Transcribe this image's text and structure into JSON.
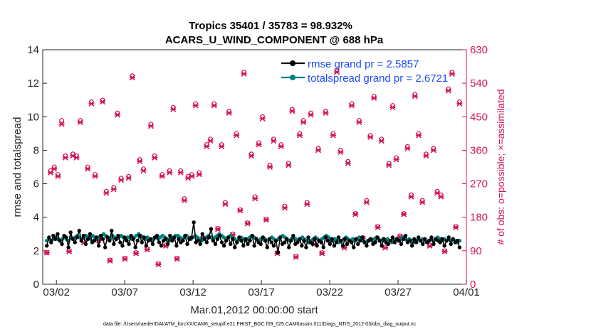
{
  "chart_data": {
    "type": "line",
    "title_line1": "Tropics 35401 / 35783 = 98.932%",
    "title_line2": "ACARS_U_WIND_COMPONENT @ 688 hPa",
    "xlabel": "Mar.01,2012 00:00:00 start",
    "ylabel_left": "rmse and totalspread",
    "ylabel_right": "# of obs: o=possible; ×=assimilated",
    "footnote": "data file: /Users/raeder/DAI/ATM_forcXX/CAM6_setup/f.e21.FHIST_BGC.f09_025.CAM6assim.011/Diags_NTrS_2012-03/obs_diag_output.nc",
    "x_range_days": [
      0,
      31
    ],
    "x_ticks": [
      {
        "day": 1,
        "label": "03/02"
      },
      {
        "day": 6,
        "label": "03/07"
      },
      {
        "day": 11,
        "label": "03/12"
      },
      {
        "day": 16,
        "label": "03/17"
      },
      {
        "day": 21,
        "label": "03/22"
      },
      {
        "day": 26,
        "label": "03/27"
      },
      {
        "day": 31,
        "label": "04/01"
      }
    ],
    "y_left": {
      "range": [
        0,
        14
      ],
      "ticks": [
        "0",
        "2",
        "4",
        "6",
        "8",
        "10",
        "12",
        "14"
      ]
    },
    "y_right": {
      "range": [
        0,
        630
      ],
      "ticks": [
        "0",
        "90",
        "180",
        "270",
        "360",
        "450",
        "540",
        "630"
      ]
    },
    "legend": {
      "rmse_label": "rmse grand pr = 2.5857",
      "spread_label": "totalspread grand pr = 2.6721"
    },
    "colors": {
      "rmse": "#000000",
      "totalspread": "#008080",
      "obs": "#d4145a",
      "axis": "#262626"
    },
    "series": [
      {
        "name": "rmse",
        "values": [
          2.3,
          2.8,
          2.5,
          2.9,
          2.7,
          3.0,
          2.6,
          2.4,
          2.9,
          2.8,
          2.2,
          3.1,
          2.7,
          2.5,
          2.8,
          3.2,
          2.6,
          2.9,
          2.4,
          2.7,
          3.0,
          2.5,
          2.6,
          2.8,
          2.3,
          2.9,
          2.7,
          2.2,
          2.8,
          2.6,
          3.2,
          2.4,
          2.7,
          2.9,
          2.5,
          2.3,
          2.8,
          2.6,
          2.4,
          2.9,
          2.7,
          2.2,
          2.6,
          2.9,
          2.5,
          2.8,
          2.3,
          2.6,
          2.7,
          2.4,
          2.8,
          2.9,
          2.5,
          2.3,
          2.6,
          2.7,
          2.4,
          2.9,
          2.6,
          2.8,
          2.3,
          2.7,
          2.5,
          2.6,
          2.9,
          2.4,
          2.7,
          2.8,
          3.7,
          2.5,
          2.6,
          2.4,
          3.0,
          2.7,
          2.5,
          2.8,
          3.3,
          2.6,
          2.4,
          2.7,
          2.9,
          2.5,
          2.3,
          2.6,
          2.8,
          2.4,
          2.7,
          2.2,
          2.5,
          2.8,
          2.6,
          2.3,
          2.7,
          2.4,
          2.6,
          2.9,
          2.3,
          2.7,
          2.5,
          2.4,
          2.8,
          2.6,
          2.2,
          2.7,
          2.5,
          2.3,
          2.6,
          1.9,
          2.8,
          2.4,
          2.5,
          2.7,
          2.2,
          2.6,
          2.9,
          2.4,
          2.5,
          2.7,
          2.3,
          2.6,
          2.2,
          2.8,
          2.5,
          2.4,
          2.7,
          2.3,
          2.6,
          2.5,
          2.2,
          2.8,
          2.6,
          2.4,
          2.7,
          2.3,
          2.5,
          2.8,
          2.6,
          2.3,
          2.7,
          2.4,
          2.6,
          2.5,
          2.2,
          2.7,
          2.4,
          2.6,
          2.8,
          2.5,
          2.3,
          2.6,
          2.7,
          2.4,
          2.5,
          2.8,
          2.6,
          2.3,
          2.7,
          2.5,
          2.4,
          2.6,
          2.8,
          2.5,
          2.7,
          2.6,
          2.4,
          2.7,
          2.9,
          2.5,
          2.6,
          2.3,
          2.7,
          2.5,
          2.8,
          2.6,
          2.4,
          2.7,
          2.5,
          2.6,
          2.8,
          2.4,
          2.7,
          2.6,
          2.5,
          2.7,
          2.3,
          2.6,
          2.8,
          2.4,
          2.7,
          2.5,
          2.6,
          2.2
        ]
      },
      {
        "name": "totalspread",
        "values": [
          2.6,
          2.7,
          2.6,
          2.7,
          2.8,
          2.7,
          2.6,
          2.7,
          2.8,
          2.7,
          2.6,
          2.8,
          2.7,
          2.8,
          2.9,
          2.8,
          2.7,
          2.8,
          2.9,
          2.8,
          2.7,
          2.9,
          2.8,
          2.7,
          2.8,
          2.9,
          3.0,
          2.9,
          2.8,
          2.7,
          2.9,
          2.8,
          2.7,
          2.8,
          2.9,
          2.8,
          2.7,
          2.8,
          2.8,
          2.7,
          2.8,
          2.9,
          3.0,
          2.9,
          2.8,
          2.7,
          2.8,
          2.7,
          2.6,
          2.7,
          2.8,
          2.7,
          2.8,
          2.9,
          2.8,
          2.7,
          2.6,
          2.7,
          2.8,
          2.9,
          2.9,
          2.8,
          2.7,
          2.8,
          2.9,
          2.8,
          2.7,
          2.8,
          2.9,
          2.8,
          2.7,
          2.6,
          2.7,
          2.8,
          2.9,
          2.8,
          2.7,
          2.8,
          2.9,
          3.0,
          2.9,
          2.8,
          2.7,
          2.8,
          2.9,
          2.8,
          2.7,
          2.6,
          2.7,
          2.8,
          2.7,
          2.6,
          2.7,
          2.8,
          2.9,
          2.8,
          2.7,
          2.6,
          2.7,
          2.8,
          2.7,
          2.6,
          2.7,
          2.8,
          2.7,
          2.6,
          2.7,
          2.8,
          2.9,
          2.8,
          2.7,
          2.6,
          2.7,
          2.8,
          2.7,
          2.6,
          2.7,
          2.8,
          2.7,
          2.6,
          2.5,
          2.6,
          2.7,
          2.8,
          2.7,
          2.6,
          2.7,
          2.8,
          2.9,
          2.8,
          2.7,
          2.6,
          2.7,
          2.6,
          2.5,
          2.6,
          2.7,
          2.8,
          2.7,
          2.6,
          2.7,
          2.6,
          2.7,
          2.8,
          2.7,
          2.6,
          2.5,
          2.6,
          2.7,
          2.6,
          2.7,
          2.8,
          2.7,
          2.6,
          2.7,
          2.6,
          2.7,
          2.6,
          2.5,
          2.6,
          2.7,
          2.6,
          2.7,
          2.8,
          2.7,
          2.6,
          2.7,
          2.6,
          2.5,
          2.6,
          2.7,
          2.6,
          2.7,
          2.6,
          2.5,
          2.6,
          2.7,
          2.6,
          2.7,
          2.8,
          2.7,
          2.6,
          2.7,
          2.6,
          2.7,
          2.6,
          2.7,
          2.6,
          2.5,
          2.6
        ]
      },
      {
        "name": "obs_possible",
        "values": [
          85,
          305,
          315,
          295,
          440,
          345,
          90,
          350,
          345,
          440,
          115,
          315,
          490,
          295,
          120,
          495,
          250,
          65,
          260,
          460,
          285,
          70,
          290,
          560,
          85,
          335,
          310,
          95,
          430,
          345,
          55,
          295,
          105,
          305,
          475,
          70,
          305,
          230,
          290,
          295,
          485,
          300,
          125,
          375,
          390,
          485,
          150,
          375,
          220,
          465,
          135,
          405,
          200,
          570,
          165,
          350,
          235,
          380,
          450,
          175,
          320,
          390,
          85,
          375,
          210,
          325,
          470,
          75,
          405,
          440,
          220,
          460,
          110,
          365,
          85,
          465,
          120,
          405,
          575,
          360,
          100,
          330,
          485,
          190,
          440,
          125,
          225,
          400,
          505,
          155,
          390,
          100,
          325,
          480,
          340,
          130,
          190,
          370,
          240,
          510,
          405,
          225,
          350,
          105,
          365,
          250,
          240,
          90,
          525,
          570,
          155,
          490
        ]
      },
      {
        "name": "obs_assimilated",
        "values": [
          85,
          300,
          310,
          290,
          430,
          340,
          88,
          345,
          340,
          435,
          112,
          310,
          485,
          290,
          118,
          490,
          245,
          63,
          255,
          455,
          280,
          68,
          285,
          555,
          83,
          330,
          305,
          93,
          425,
          340,
          53,
          290,
          103,
          300,
          470,
          68,
          300,
          225,
          285,
          290,
          480,
          295,
          123,
          370,
          385,
          480,
          148,
          370,
          215,
          460,
          133,
          400,
          198,
          565,
          163,
          345,
          230,
          375,
          445,
          173,
          315,
          385,
          83,
          370,
          205,
          320,
          465,
          73,
          400,
          435,
          215,
          455,
          108,
          360,
          83,
          460,
          118,
          400,
          570,
          355,
          98,
          325,
          480,
          188,
          435,
          123,
          220,
          395,
          500,
          153,
          385,
          98,
          320,
          475,
          335,
          128,
          188,
          365,
          235,
          505,
          400,
          220,
          345,
          103,
          360,
          245,
          235,
          88,
          520,
          565,
          153,
          485
        ]
      }
    ]
  }
}
